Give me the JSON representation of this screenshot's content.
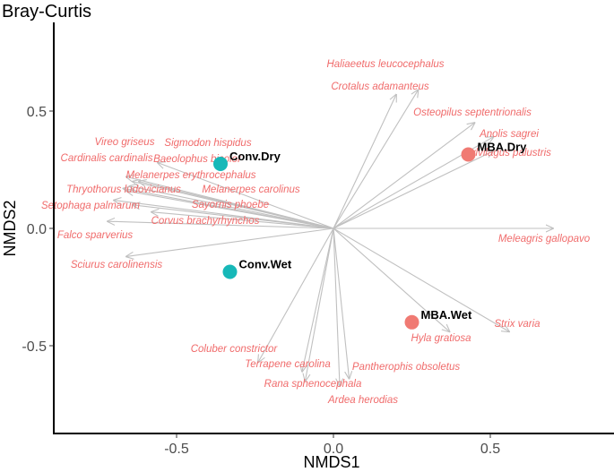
{
  "chart_data": {
    "type": "scatter",
    "title": "Bray-Curtis",
    "xlabel": "NMDS1",
    "ylabel": "NMDS2",
    "xlim": [
      -0.9,
      0.9
    ],
    "ylim": [
      -0.82,
      0.88
    ],
    "xticks": [
      -0.5,
      0.0,
      0.5
    ],
    "yticks": [
      -0.5,
      0.0,
      0.5
    ],
    "xtick_labels": [
      "-0.5",
      "0.0",
      "0.5"
    ],
    "ytick_labels": [
      "-0.5",
      "0.0",
      "0.5"
    ],
    "grid": false,
    "colors": {
      "arrow": "#c0c0c0",
      "species_text": "#f06b6b",
      "mba_point": "#f07a73",
      "conv_point": "#17b8b8",
      "site_text": "#000000"
    },
    "sites": [
      {
        "name": "Conv.Dry",
        "x": -0.36,
        "y": 0.275,
        "group": "conv"
      },
      {
        "name": "Conv.Wet",
        "x": -0.33,
        "y": -0.185,
        "group": "conv"
      },
      {
        "name": "MBA.Dry",
        "x": 0.43,
        "y": 0.315,
        "group": "mba"
      },
      {
        "name": "MBA.Wet",
        "x": 0.25,
        "y": -0.4,
        "group": "mba"
      }
    ],
    "species": [
      {
        "name": "Haliaeetus leucocephalus",
        "x": 0.2,
        "y": 0.57
      },
      {
        "name": "Crotalus adamanteus",
        "x": 0.27,
        "y": 0.59
      },
      {
        "name": "Osteopilus septentrionalis",
        "x": 0.45,
        "y": 0.45
      },
      {
        "name": "Anolis sagrei",
        "x": 0.51,
        "y": 0.39
      },
      {
        "name": "Sylvilagus palustris",
        "x": 0.51,
        "y": 0.33
      },
      {
        "name": "Meleagris gallopavo",
        "x": 0.7,
        "y": 0.0
      },
      {
        "name": "Strix varia",
        "x": 0.56,
        "y": -0.44
      },
      {
        "name": "Hyla gratiosa",
        "x": 0.37,
        "y": -0.44
      },
      {
        "name": "Pantherophis obsoletus",
        "x": 0.05,
        "y": -0.64
      },
      {
        "name": "Ardea herodias",
        "x": 0.02,
        "y": -0.67
      },
      {
        "name": "Rana sphenocephala",
        "x": -0.09,
        "y": -0.65
      },
      {
        "name": "Terrapene carolina",
        "x": -0.1,
        "y": -0.61
      },
      {
        "name": "Coluber constrictor",
        "x": -0.24,
        "y": -0.57
      },
      {
        "name": "Vireo griseus",
        "x": -0.64,
        "y": 0.2
      },
      {
        "name": "Sigmodon hispidus",
        "x": -0.56,
        "y": 0.28
      },
      {
        "name": "Baeolophus bicolor",
        "x": -0.62,
        "y": 0.2
      },
      {
        "name": "Cardinalis cardinalis",
        "x": -0.66,
        "y": 0.22
      },
      {
        "name": "Melanerpes erythrocephalus",
        "x": -0.65,
        "y": 0.18
      },
      {
        "name": "Thryothorus ludovicianus",
        "x": -0.67,
        "y": 0.17
      },
      {
        "name": "Melanerpes carolinus",
        "x": -0.66,
        "y": 0.16
      },
      {
        "name": "Setophaga palmarum",
        "x": -0.7,
        "y": 0.12
      },
      {
        "name": "Sayornis phoebe",
        "x": -0.64,
        "y": 0.1
      },
      {
        "name": "Corvus brachyrhynchos",
        "x": -0.58,
        "y": 0.07
      },
      {
        "name": "Falco sparverius",
        "x": -0.72,
        "y": 0.03
      },
      {
        "name": "Sciurus carolinensis",
        "x": -0.66,
        "y": -0.12
      }
    ]
  }
}
